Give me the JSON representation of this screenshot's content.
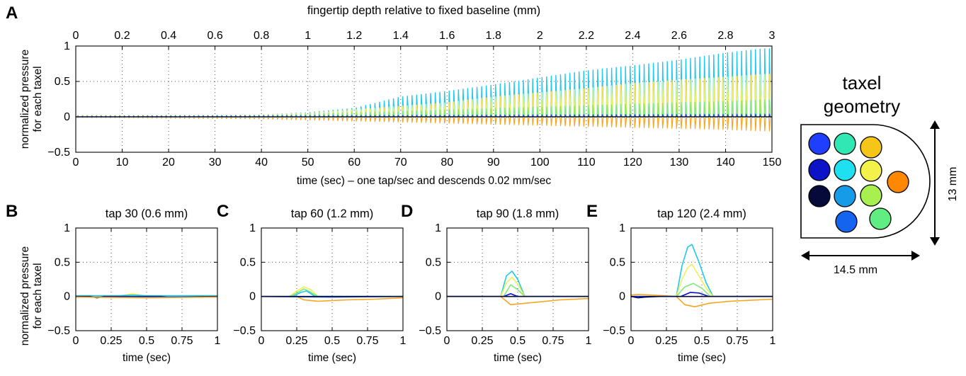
{
  "panel_letters": [
    "A",
    "B",
    "C",
    "D",
    "E"
  ],
  "taxel_geometry": {
    "title_line1": "taxel",
    "title_line2": "geometry",
    "height_label": "13 mm",
    "width_label": "14.5 mm",
    "taxel_colors": [
      "#1f3fff",
      "#0b12c8",
      "#050a3a",
      "#2fe8b4",
      "#1ee0f0",
      "#159be8",
      "#1464f0",
      "#f5c518",
      "#f2f24a",
      "#a8f050",
      "#60ee82",
      "#ff8800"
    ]
  },
  "chart_data": [
    {
      "id": "A",
      "type": "line",
      "title": "fingertip depth relative to fixed baseline (mm)",
      "xlabel": "time (sec) – one tap/sec and descends 0.02 mm/sec",
      "ylabel": [
        "normalized pressure",
        "for each taxel"
      ],
      "xlim": [
        0,
        150
      ],
      "ylim": [
        -0.5,
        1
      ],
      "xticks": [
        "0",
        "10",
        "20",
        "30",
        "40",
        "50",
        "60",
        "70",
        "80",
        "90",
        "100",
        "110",
        "120",
        "130",
        "140",
        "150"
      ],
      "top_xticks": [
        "0",
        "0.2",
        "0.4",
        "0.6",
        "0.8",
        "1",
        "1.2",
        "1.4",
        "1.6",
        "1.8",
        "2",
        "2.2",
        "2.4",
        "2.6",
        "2.8",
        "3"
      ],
      "yticks": [
        "1",
        "0.5",
        "0",
        "−0.5"
      ],
      "grid": true,
      "series": [
        {
          "color": "#1ec8f0",
          "x": [
            0,
            30,
            40,
            50,
            60,
            65,
            70,
            80,
            90,
            100,
            110,
            120,
            130,
            140,
            148
          ],
          "peak": [
            0.02,
            0.02,
            0.03,
            0.06,
            0.12,
            0.2,
            0.28,
            0.36,
            0.45,
            0.55,
            0.65,
            0.72,
            0.8,
            0.9,
            0.96
          ]
        },
        {
          "color": "#f0f055",
          "x": [
            0,
            30,
            40,
            50,
            60,
            70,
            80,
            90,
            100,
            110,
            120,
            130,
            140,
            148
          ],
          "peak": [
            0.02,
            0.02,
            0.03,
            0.05,
            0.1,
            0.15,
            0.2,
            0.28,
            0.34,
            0.4,
            0.47,
            0.52,
            0.56,
            0.6
          ]
        },
        {
          "color": "#7fe87a",
          "x": [
            0,
            40,
            60,
            80,
            100,
            120,
            140,
            148
          ],
          "peak": [
            0.01,
            0.02,
            0.06,
            0.1,
            0.14,
            0.18,
            0.22,
            0.24
          ]
        },
        {
          "color": "#f5a623",
          "x": [
            0,
            40,
            60,
            80,
            100,
            120,
            140,
            148
          ],
          "peak": [
            -0.01,
            -0.03,
            -0.06,
            -0.09,
            -0.12,
            -0.15,
            -0.18,
            -0.2
          ]
        },
        {
          "color": "#1e64f0",
          "x": [
            0,
            60,
            100,
            148
          ],
          "peak": [
            0.01,
            0.02,
            0.03,
            0.04
          ]
        },
        {
          "color": "#050a3a",
          "x": [
            0,
            150
          ],
          "peak": [
            0.0,
            0.01
          ]
        }
      ]
    },
    {
      "id": "B",
      "type": "line",
      "title": "tap 30 (0.6 mm)",
      "xlabel": "time (sec)",
      "ylabel": [
        "normalized pressure",
        "for each taxel"
      ],
      "xlim": [
        0,
        1
      ],
      "ylim": [
        -0.5,
        1
      ],
      "xticks": [
        "0",
        "0.25",
        "0.5",
        "0.75",
        "1"
      ],
      "yticks": [
        "1",
        "0.5",
        "0",
        "−0.5"
      ],
      "grid": true,
      "series": [
        {
          "color": "#f0f055",
          "x": [
            0,
            0.3,
            0.35,
            0.4,
            0.45,
            0.5,
            1
          ],
          "y": [
            0,
            0,
            0.02,
            0.04,
            0.02,
            0,
            0
          ]
        },
        {
          "color": "#1ec8f0",
          "x": [
            0,
            0.3,
            0.4,
            0.5,
            1
          ],
          "y": [
            0.01,
            0.01,
            0.02,
            0.01,
            0.01
          ]
        },
        {
          "color": "#050a3a",
          "x": [
            0,
            0.1,
            0.15,
            0.2,
            0.6,
            0.65,
            1
          ],
          "y": [
            0,
            0,
            -0.02,
            0,
            0,
            -0.01,
            0
          ]
        },
        {
          "color": "#1e64f0",
          "x": [
            0,
            0.5,
            1
          ],
          "y": [
            -0.01,
            -0.01,
            -0.01
          ]
        },
        {
          "color": "#f5a623",
          "x": [
            0,
            0.5,
            1
          ],
          "y": [
            -0.01,
            -0.02,
            -0.01
          ]
        }
      ]
    },
    {
      "id": "C",
      "type": "line",
      "title": "tap 60 (1.2 mm)",
      "xlabel": "time (sec)",
      "xlim": [
        0,
        1
      ],
      "ylim": [
        -0.5,
        1
      ],
      "xticks": [
        "0",
        "0.25",
        "0.5",
        "0.75",
        "1"
      ],
      "yticks": [
        "1",
        "0.5",
        "0",
        "−0.5"
      ],
      "grid": true,
      "series": [
        {
          "color": "#f0f055",
          "x": [
            0,
            0.2,
            0.25,
            0.3,
            0.35,
            0.4,
            1
          ],
          "y": [
            0,
            0,
            0.08,
            0.14,
            0.1,
            0,
            0
          ]
        },
        {
          "color": "#7fe87a",
          "x": [
            0,
            0.2,
            0.25,
            0.3,
            0.35,
            0.4,
            1
          ],
          "y": [
            0,
            0,
            0.05,
            0.11,
            0.06,
            0,
            0
          ]
        },
        {
          "color": "#1ec8f0",
          "x": [
            0,
            0.22,
            0.28,
            0.32,
            0.38,
            1
          ],
          "y": [
            0,
            0,
            0.06,
            0.08,
            0,
            0
          ]
        },
        {
          "color": "#f5a623",
          "x": [
            0,
            0.25,
            0.3,
            0.4,
            0.6,
            0.8,
            1
          ],
          "y": [
            0,
            0,
            -0.05,
            -0.07,
            -0.05,
            -0.04,
            -0.02
          ]
        },
        {
          "color": "#1e64f0",
          "x": [
            0,
            0.5,
            1
          ],
          "y": [
            0,
            -0.01,
            0
          ]
        },
        {
          "color": "#050a3a",
          "x": [
            0,
            1
          ],
          "y": [
            0,
            0
          ]
        }
      ]
    },
    {
      "id": "D",
      "type": "line",
      "title": "tap 90 (1.8 mm)",
      "xlabel": "time (sec)",
      "xlim": [
        0,
        1
      ],
      "ylim": [
        -0.5,
        1
      ],
      "xticks": [
        "0",
        "0.25",
        "0.5",
        "0.75",
        "1"
      ],
      "yticks": [
        "1",
        "0.5",
        "0",
        "−0.5"
      ],
      "grid": true,
      "series": [
        {
          "color": "#1ec8f0",
          "x": [
            0,
            0.38,
            0.42,
            0.46,
            0.5,
            0.55,
            1
          ],
          "y": [
            0,
            0,
            0.3,
            0.37,
            0.25,
            0,
            0
          ]
        },
        {
          "color": "#f0f055",
          "x": [
            0,
            0.38,
            0.42,
            0.46,
            0.5,
            0.55,
            1
          ],
          "y": [
            0,
            0,
            0.2,
            0.28,
            0.18,
            0,
            0
          ]
        },
        {
          "color": "#7fe87a",
          "x": [
            0,
            0.4,
            0.45,
            0.5,
            0.55,
            1
          ],
          "y": [
            0,
            0,
            0.17,
            0.1,
            0,
            0
          ]
        },
        {
          "color": "#f5a623",
          "x": [
            0,
            0.38,
            0.45,
            0.55,
            0.65,
            0.8,
            1
          ],
          "y": [
            0,
            0,
            -0.12,
            -0.1,
            -0.08,
            -0.05,
            -0.03
          ]
        },
        {
          "color": "#0b12c8",
          "x": [
            0,
            0.4,
            0.45,
            0.5,
            1
          ],
          "y": [
            0,
            0,
            0.04,
            0,
            0
          ]
        },
        {
          "color": "#050a3a",
          "x": [
            0,
            1
          ],
          "y": [
            0,
            0
          ]
        }
      ]
    },
    {
      "id": "E",
      "type": "line",
      "title": "tap 120 (2.4 mm)",
      "xlabel": "time (sec)",
      "xlim": [
        0,
        1
      ],
      "ylim": [
        -0.5,
        1
      ],
      "xticks": [
        "0",
        "0.25",
        "0.5",
        "0.75",
        "1"
      ],
      "yticks": [
        "1",
        "0.5",
        "0",
        "−0.5"
      ],
      "grid": true,
      "series": [
        {
          "color": "#1ec8f0",
          "x": [
            0,
            0.32,
            0.36,
            0.4,
            0.43,
            0.48,
            0.53,
            0.58,
            1
          ],
          "y": [
            0,
            0,
            0.45,
            0.72,
            0.76,
            0.5,
            0.2,
            0,
            0
          ]
        },
        {
          "color": "#f0f055",
          "x": [
            0,
            0.32,
            0.36,
            0.4,
            0.43,
            0.48,
            0.53,
            0.58,
            1
          ],
          "y": [
            0,
            0,
            0.25,
            0.42,
            0.47,
            0.3,
            0.12,
            0,
            0
          ]
        },
        {
          "color": "#7fe87a",
          "x": [
            0,
            0.32,
            0.38,
            0.44,
            0.5,
            0.56,
            1
          ],
          "y": [
            0,
            0,
            0.14,
            0.19,
            0.12,
            0,
            0
          ]
        },
        {
          "color": "#f5a623",
          "x": [
            0,
            0.05,
            0.15,
            0.32,
            0.38,
            0.45,
            0.55,
            0.7,
            1
          ],
          "y": [
            0.02,
            0.03,
            0.02,
            0,
            -0.12,
            -0.15,
            -0.1,
            -0.07,
            -0.04
          ]
        },
        {
          "color": "#0b12c8",
          "x": [
            0,
            0.35,
            0.42,
            0.48,
            0.55,
            1
          ],
          "y": [
            0,
            0,
            0.06,
            0.05,
            0,
            0
          ]
        },
        {
          "color": "#050a3a",
          "x": [
            0,
            0.05,
            0.1,
            0.2,
            1
          ],
          "y": [
            0,
            -0.02,
            -0.01,
            0,
            0
          ]
        }
      ]
    }
  ]
}
